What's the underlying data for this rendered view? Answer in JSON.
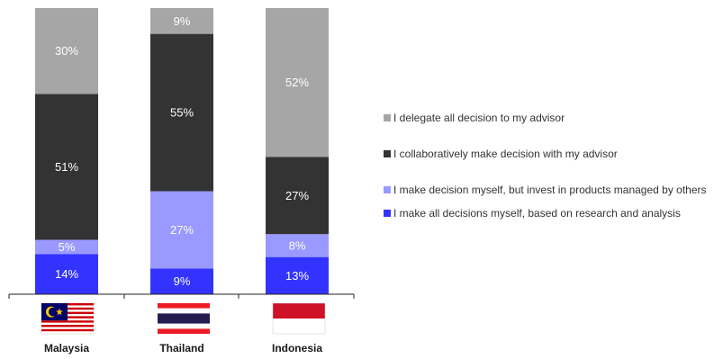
{
  "chart_data": {
    "type": "bar",
    "stacked": true,
    "categories": [
      "Malaysia",
      "Thailand",
      "Indonesia"
    ],
    "series": [
      {
        "name": "I make all decisions myself, based on research and analysis",
        "values": [
          14,
          9,
          13
        ],
        "color": "#3333ff",
        "label_color": "#ffffff"
      },
      {
        "name": "I make decision myself, but invest in products managed by others",
        "values": [
          5,
          27,
          8
        ],
        "color": "#9999ff",
        "label_color": "#ffffff"
      },
      {
        "name": "I collaboratively make decision with my advisor",
        "values": [
          51,
          55,
          27
        ],
        "color": "#333333",
        "label_color": "#ffffff"
      },
      {
        "name": "I delegate all decision to my advisor",
        "values": [
          30,
          9,
          52
        ],
        "color": "#a6a6a6",
        "label_color": "#ffffff"
      }
    ],
    "value_suffix": "%",
    "legend_order": [
      3,
      2,
      1,
      0
    ],
    "legend_position": "right",
    "grid": false
  }
}
